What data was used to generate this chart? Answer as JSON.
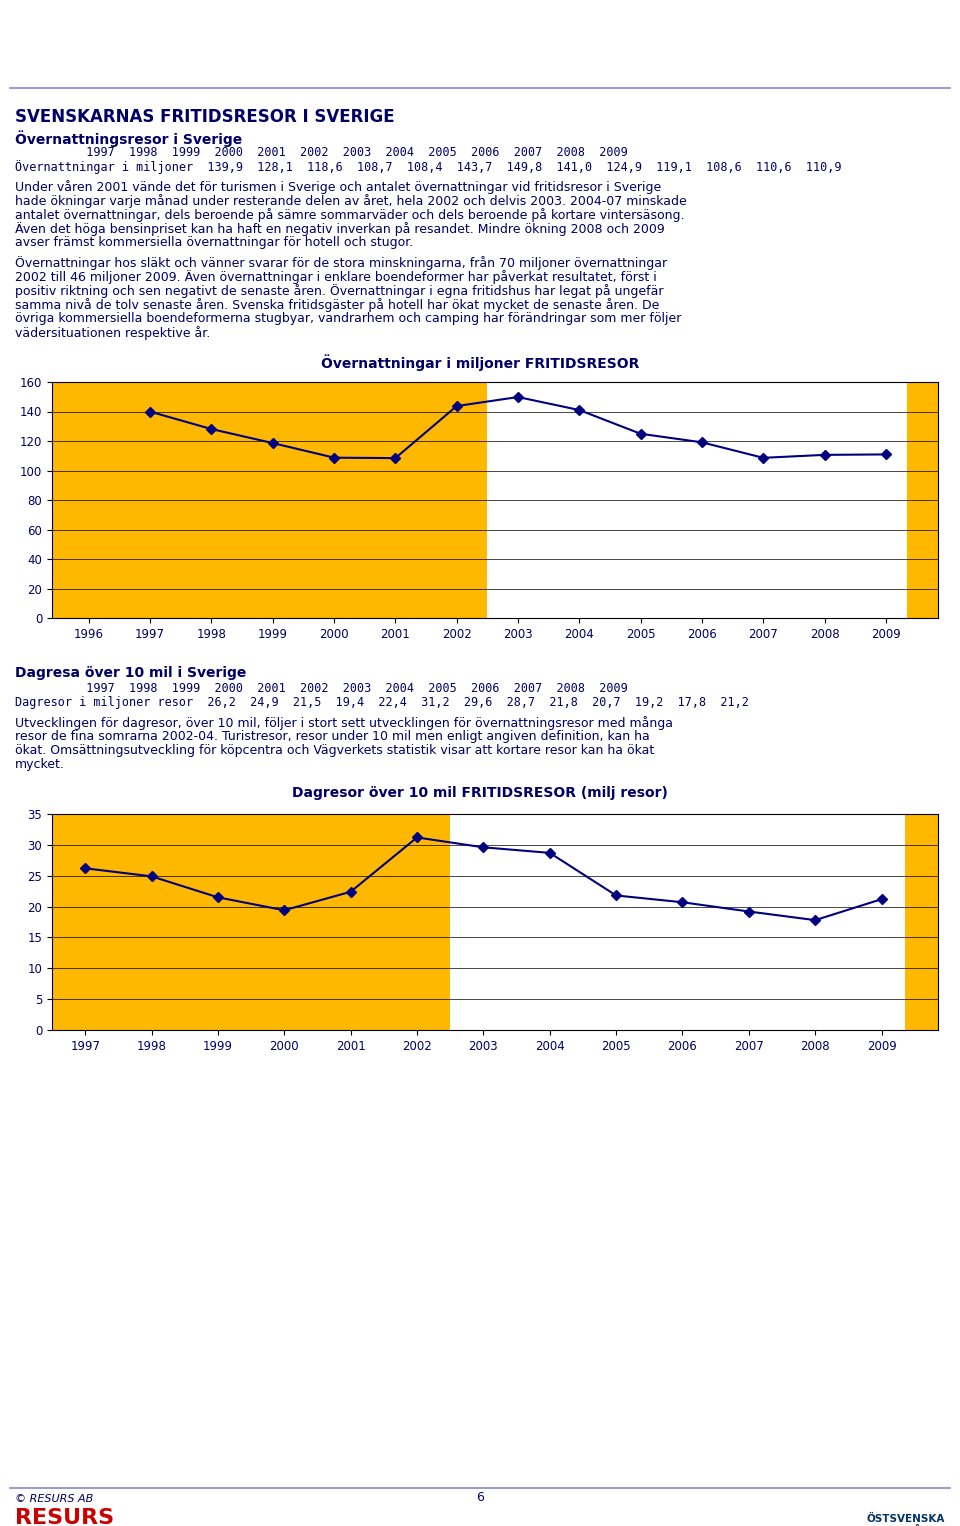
{
  "page_bg": "#ffffff",
  "header_line_color": "#8888cc",
  "text_color": "#0000cc",
  "dark_text_color": "#000066",
  "title_main": "SVENSKARNAS FRITIDSRESOR I SVERIGE",
  "section1_title": "Övernattningsresor i Sverige",
  "section1_years": "          1997  1998  1999  2000  2001  2002  2003  2004  2005  2006  2007  2008  2009",
  "section1_row": "Övernattningar i miljoner  139,9  128,1  118,6  108,7  108,4  143,7  149,8  141,0  124,9  119,1  108,6  110,6  110,9",
  "section1_para1": "Under våren 2001 vände det för turismen i Sverige och antalet övernattningar vid fritidsresor i Sverige\nhade ökningar varje månad under resterande delen av året, hela 2002 och delvis 2003. 2004-07 minskade\nantalet övernattningar, dels beroende på sämre sommarväder och dels beroende på kortare vintersäsong.\nÄven det höga bensinpriset kan ha haft en negativ inverkan på resandet. Mindre ökning 2008 och 2009\navser främst kommersiella övernattningar för hotell och stugor.",
  "section1_para2": "Övernattningar hos släkt och vänner svarar för de stora minskningarna, från 70 miljoner övernattningar\n2002 till 46 miljoner 2009. Även övernattningar i enklare boendeformer har påverkat resultatet, först i\npositiv riktning och sen negativt de senaste åren. Övernattningar i egna fritidshus har legat på ungefär\nsamma nivå de tolv senaste åren. Svenska fritidsgäster på hotell har ökat mycket de senaste åren. De\növriga kommersiella boendeformerna stugbyar, vandrarhem och camping har förändringar som mer följer\nvädersituationen respektive år.",
  "chart1_title": "Övernattningar i miljoner FRITIDSRESOR",
  "chart1_years": [
    1996,
    1997,
    1998,
    1999,
    2000,
    2001,
    2002,
    2003,
    2004,
    2005,
    2006,
    2007,
    2008,
    2009
  ],
  "chart1_data_years": [
    1997,
    1998,
    1999,
    2000,
    2001,
    2002,
    2003,
    2004,
    2005,
    2006,
    2007,
    2008,
    2009
  ],
  "chart1_data": [
    139.9,
    128.1,
    118.6,
    108.7,
    108.4,
    143.7,
    149.8,
    141.0,
    124.9,
    119.1,
    108.6,
    110.6,
    110.9
  ],
  "chart1_ylim": [
    0,
    160
  ],
  "chart1_yticks": [
    0,
    20,
    40,
    60,
    80,
    100,
    120,
    140,
    160
  ],
  "section2_title": "Dagresa över 10 mil i Sverige",
  "section2_years": "          1997  1998  1999  2000  2001  2002  2003  2004  2005  2006  2007  2008  2009",
  "section2_row": "Dagresor i miljoner resor  26,2  24,9  21,5  19,4  22,4  31,2  29,6  28,7  21,8  20,7  19,2  17,8  21,2",
  "section2_para": "Utvecklingen för dagresor, över 10 mil, följer i stort sett utvecklingen för övernattningsresor med många\nresor de fina somrarna 2002-04. Turistresor, resor under 10 mil men enligt angiven definition, kan ha\nökat. Omsättningsutveckling för köpcentra och Vägverkets statistik visar att kortare resor kan ha ökat\nmycket.",
  "chart2_title": "Dagresor över 10 mil FRITIDSRESOR (milj resor)",
  "chart2_years": [
    1997,
    1998,
    1999,
    2000,
    2001,
    2002,
    2003,
    2004,
    2005,
    2006,
    2007,
    2008,
    2009
  ],
  "chart2_data": [
    26.2,
    24.9,
    21.5,
    19.4,
    22.4,
    31.2,
    29.6,
    28.7,
    21.8,
    20.7,
    19.2,
    17.8,
    21.2
  ],
  "chart2_ylim": [
    0,
    35
  ],
  "chart2_yticks": [
    0,
    5,
    10,
    15,
    20,
    25,
    30,
    35
  ],
  "orange_color": "#FFB800",
  "line_color": "#000080",
  "marker_color": "#000080",
  "footer_text": "© RESURS AB",
  "footer_page": "6"
}
